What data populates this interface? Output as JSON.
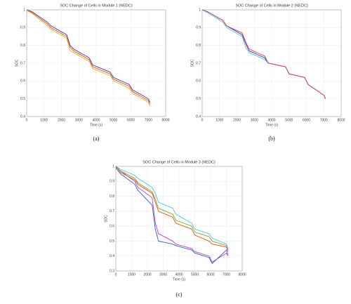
{
  "chart_data": [
    {
      "type": "line",
      "title": "SOC Change of Cells in Module 1 (NEDC)",
      "x_label": "Time (s)",
      "y_label": "SOC",
      "caption": "(a)",
      "x": [
        0,
        300,
        1200,
        1400,
        2300,
        2500,
        2700,
        3600,
        3800,
        4800,
        5000,
        5900,
        6100,
        7000,
        7100
      ],
      "series": [
        {
          "color": "#3b3bb5",
          "values": [
            1,
            0.99,
            0.93,
            0.91,
            0.86,
            0.8,
            0.78,
            0.73,
            0.69,
            0.65,
            0.62,
            0.58,
            0.55,
            0.5,
            0.48
          ]
        },
        {
          "color": "#d9541b",
          "values": [
            1,
            0.985,
            0.92,
            0.9,
            0.85,
            0.79,
            0.77,
            0.72,
            0.68,
            0.64,
            0.61,
            0.57,
            0.54,
            0.49,
            0.47
          ]
        },
        {
          "color": "#edb120",
          "values": [
            0.995,
            0.98,
            0.91,
            0.89,
            0.84,
            0.77,
            0.76,
            0.71,
            0.67,
            0.63,
            0.6,
            0.56,
            0.53,
            0.48,
            0.46
          ]
        }
      ],
      "xlim": [
        0,
        8000
      ],
      "xticks": [
        0,
        1000,
        2000,
        3000,
        4000,
        5000,
        6000,
        7000,
        8000
      ],
      "ylim": [
        0.4,
        1
      ],
      "yticks": [
        0.4,
        0.5,
        0.6,
        0.7,
        0.8,
        0.9,
        1
      ],
      "grid": true
    },
    {
      "type": "line",
      "title": "SOC Change of Cells in Module 2 (NEDC)",
      "x_label": "Time (s)",
      "y_label": "SOC",
      "caption": "(b)",
      "x": [
        0,
        300,
        1200,
        1400,
        2300,
        2500,
        2700,
        3600,
        3800,
        4800,
        5000,
        5900,
        6100,
        7000,
        7100
      ],
      "series": [
        {
          "color": "#3b3bb5",
          "values": [
            1,
            0.99,
            0.94,
            0.91,
            0.86,
            0.81,
            0.77,
            0.73,
            0.7,
            0.68,
            0.64,
            0.62,
            0.58,
            0.52,
            0.5
          ]
        },
        {
          "color": "#4dbeee",
          "values": [
            1,
            0.985,
            0.93,
            0.9,
            0.85,
            0.79,
            0.76,
            0.72,
            0.7,
            0.68,
            0.64,
            0.62,
            0.58,
            0.52,
            0.5
          ]
        },
        {
          "color": "#e0403a",
          "values": [
            1,
            0.99,
            0.94,
            0.91,
            0.87,
            0.82,
            0.78,
            0.74,
            0.7,
            0.68,
            0.64,
            0.62,
            0.58,
            0.52,
            0.5
          ]
        }
      ],
      "xlim": [
        0,
        8000
      ],
      "xticks": [
        0,
        1000,
        2000,
        3000,
        4000,
        5000,
        6000,
        7000,
        8000
      ],
      "ylim": [
        0.4,
        1
      ],
      "yticks": [
        0.4,
        0.5,
        0.6,
        0.7,
        0.8,
        0.9,
        1
      ],
      "grid": true
    },
    {
      "type": "line",
      "title": "SOC Change of Cells in Module 3 (NEDC)",
      "x_label": "Time (s)",
      "y_label": "SOC",
      "caption": "(c)",
      "x": [
        0,
        300,
        1200,
        1400,
        2300,
        2500,
        2700,
        3600,
        3800,
        4800,
        5000,
        5900,
        6100,
        7000,
        7100
      ],
      "series": [
        {
          "color": "#4dbeee",
          "values": [
            1,
            0.98,
            0.94,
            0.92,
            0.86,
            0.82,
            0.76,
            0.72,
            0.68,
            0.62,
            0.58,
            0.55,
            0.52,
            0.48,
            0.45
          ]
        },
        {
          "color": "#c03fb0",
          "values": [
            1,
            0.97,
            0.9,
            0.86,
            0.79,
            0.62,
            0.55,
            0.5,
            0.48,
            0.45,
            0.43,
            0.4,
            0.36,
            0.42,
            0.4
          ]
        },
        {
          "color": "#3060c8",
          "values": [
            0.99,
            0.95,
            0.88,
            0.84,
            0.74,
            0.58,
            0.5,
            0.48,
            0.47,
            0.44,
            0.42,
            0.39,
            0.35,
            0.44,
            0.41
          ]
        },
        {
          "color": "#d9541b",
          "values": [
            1,
            0.96,
            0.91,
            0.88,
            0.82,
            0.76,
            0.7,
            0.66,
            0.62,
            0.58,
            0.54,
            0.5,
            0.48,
            0.46,
            0.43
          ]
        },
        {
          "color": "#77ac30",
          "values": [
            0.995,
            0.97,
            0.92,
            0.89,
            0.83,
            0.78,
            0.72,
            0.68,
            0.64,
            0.6,
            0.56,
            0.53,
            0.5,
            0.47,
            0.44
          ]
        }
      ],
      "xlim": [
        0,
        8000
      ],
      "xticks": [
        0,
        1000,
        2000,
        3000,
        4000,
        5000,
        6000,
        7000,
        8000
      ],
      "ylim": [
        0.3,
        1
      ],
      "yticks": [
        0.3,
        0.4,
        0.5,
        0.6,
        0.7,
        0.8,
        0.9,
        1
      ],
      "grid": true
    }
  ]
}
